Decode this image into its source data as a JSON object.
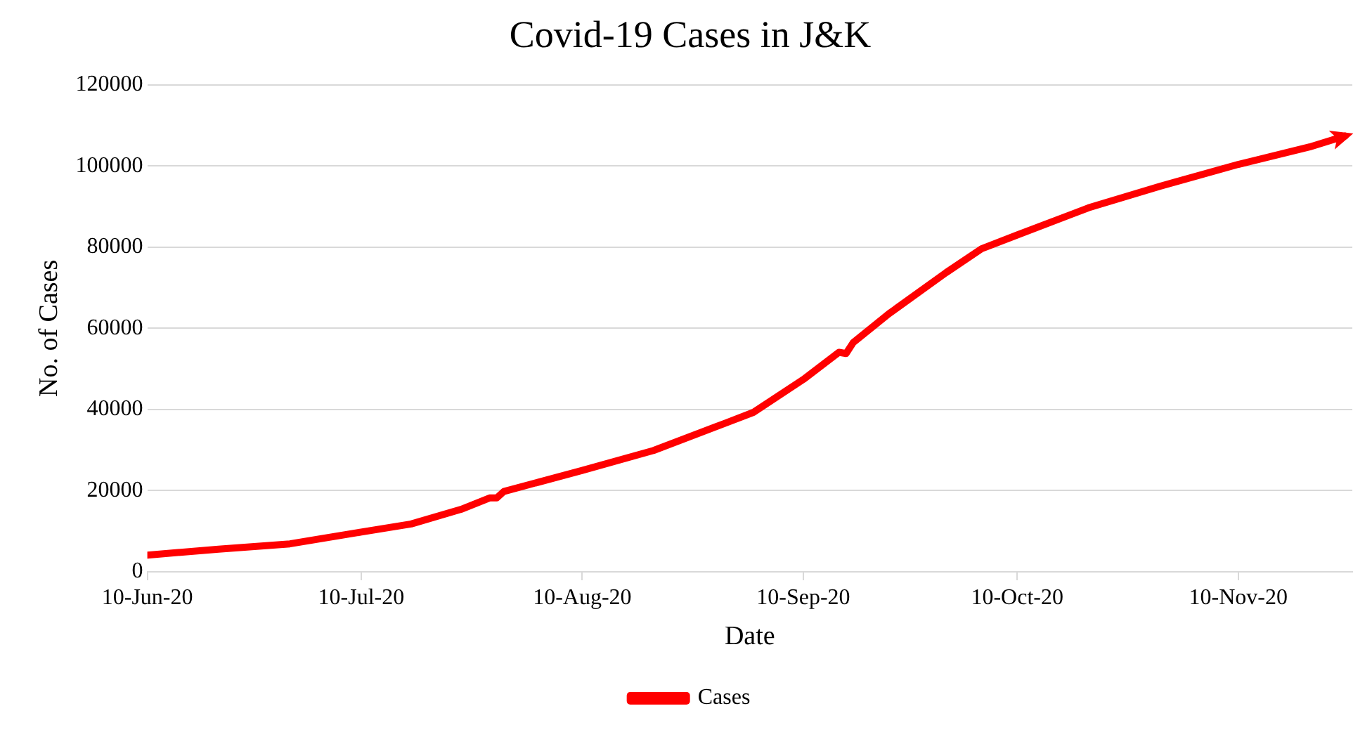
{
  "chart_data": {
    "type": "line",
    "title": "Covid-19 Cases in J&K",
    "xlabel": "Date",
    "ylabel": "No. of Cases",
    "x": [
      "2020-06-10",
      "2020-06-20",
      "2020-06-30",
      "2020-07-10",
      "2020-07-17",
      "2020-07-24",
      "2020-07-28",
      "2020-07-29",
      "2020-07-30",
      "2020-08-10",
      "2020-08-20",
      "2020-08-30",
      "2020-09-03",
      "2020-09-10",
      "2020-09-15",
      "2020-09-16",
      "2020-09-17",
      "2020-09-22",
      "2020-09-30",
      "2020-10-05",
      "2020-10-10",
      "2020-10-20",
      "2020-10-30",
      "2020-11-10",
      "2020-11-20",
      "2020-11-25"
    ],
    "series": [
      {
        "name": "Cases",
        "color": "#ff0000",
        "values": [
          4100,
          5600,
          6900,
          9800,
          11800,
          15400,
          18200,
          18200,
          19800,
          25000,
          29900,
          36600,
          39300,
          47400,
          54100,
          53800,
          56500,
          63600,
          73700,
          79600,
          83000,
          89700,
          95000,
          100400,
          104700,
          107400
        ]
      }
    ],
    "xlim": [
      "2020-06-10",
      "2020-11-26"
    ],
    "xticks": [
      {
        "value": "2020-06-10",
        "label": "10-Jun-20"
      },
      {
        "value": "2020-07-10",
        "label": "10-Jul-20"
      },
      {
        "value": "2020-08-10",
        "label": "10-Aug-20"
      },
      {
        "value": "2020-09-10",
        "label": "10-Sep-20"
      },
      {
        "value": "2020-10-10",
        "label": "10-Oct-20"
      },
      {
        "value": "2020-11-10",
        "label": "10-Nov-20"
      }
    ],
    "ylim": [
      0,
      120000
    ],
    "yticks": [
      0,
      20000,
      40000,
      60000,
      80000,
      100000,
      120000
    ],
    "grid": "y",
    "legend": "bottom",
    "marker": "none",
    "line_style": "solid"
  }
}
